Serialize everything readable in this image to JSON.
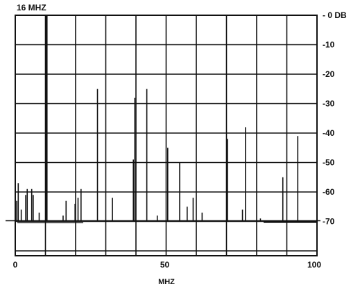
{
  "chart_data": {
    "type": "line",
    "title": "16 MHZ",
    "xlabel": "MHZ",
    "ylabel": "",
    "xlim": [
      0,
      100
    ],
    "ylim": [
      -80,
      0
    ],
    "x_ticks": [
      "0",
      "50",
      "100"
    ],
    "x_tick_values": [
      0,
      50,
      100
    ],
    "y_ticks": [
      "- 0 DB",
      "-10",
      "-20",
      "-30",
      "-40",
      "-50",
      "-60",
      "-70"
    ],
    "y_tick_values": [
      0,
      -10,
      -20,
      -30,
      -40,
      -50,
      -60,
      -70
    ],
    "grid": true,
    "noise_floor_db": -70,
    "spectral_lines": [
      {
        "x": 0.5,
        "y": -63
      },
      {
        "x": 1.0,
        "y": -57
      },
      {
        "x": 2.0,
        "y": -66
      },
      {
        "x": 3.5,
        "y": -61
      },
      {
        "x": 4.0,
        "y": -59
      },
      {
        "x": 5.5,
        "y": -59
      },
      {
        "x": 6.0,
        "y": -61
      },
      {
        "x": 8.0,
        "y": -67
      },
      {
        "x": 10.5,
        "y": 0
      },
      {
        "x": 16.0,
        "y": -68
      },
      {
        "x": 17.0,
        "y": -63
      },
      {
        "x": 20.0,
        "y": -64
      },
      {
        "x": 21.0,
        "y": -62
      },
      {
        "x": 22.0,
        "y": -59
      },
      {
        "x": 27.5,
        "y": -25
      },
      {
        "x": 32.5,
        "y": -62
      },
      {
        "x": 39.5,
        "y": -49
      },
      {
        "x": 40.0,
        "y": -28
      },
      {
        "x": 44.0,
        "y": -25
      },
      {
        "x": 47.5,
        "y": -68
      },
      {
        "x": 51.0,
        "y": -45
      },
      {
        "x": 55.0,
        "y": -50
      },
      {
        "x": 57.5,
        "y": -65
      },
      {
        "x": 59.5,
        "y": -62
      },
      {
        "x": 62.5,
        "y": -67
      },
      {
        "x": 71.0,
        "y": -42
      },
      {
        "x": 76.0,
        "y": -66
      },
      {
        "x": 77.0,
        "y": -38
      },
      {
        "x": 82.0,
        "y": -69
      },
      {
        "x": 89.5,
        "y": -55
      },
      {
        "x": 94.5,
        "y": -41
      }
    ]
  }
}
